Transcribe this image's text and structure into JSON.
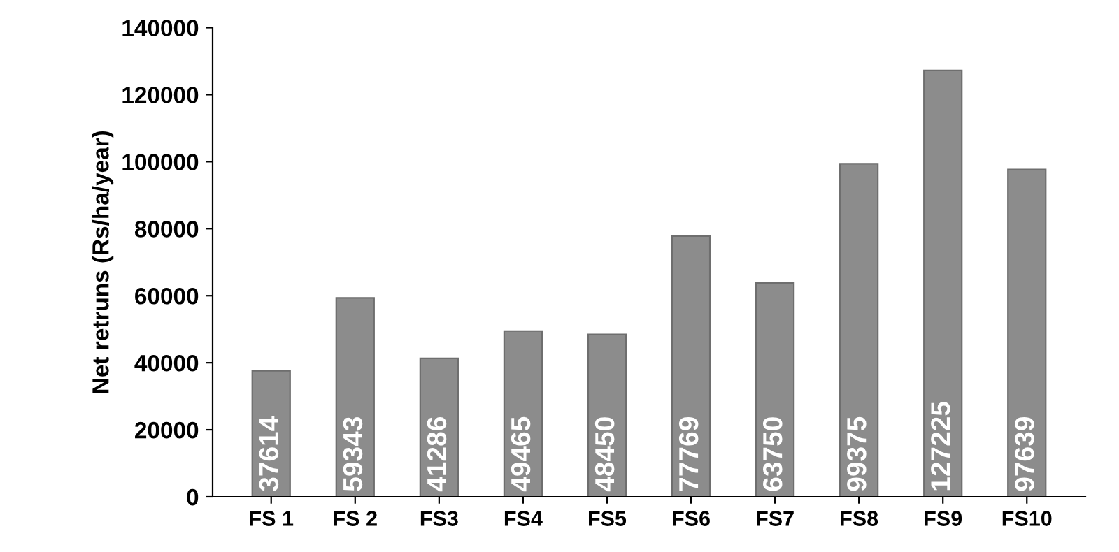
{
  "chart_data": {
    "type": "bar",
    "ylabel": "Net retruns (Rs/ha/year)",
    "categories": [
      "FS 1",
      "FS 2",
      "FS3",
      "FS4",
      "FS5",
      "FS6",
      "FS7",
      "FS8",
      "FS9",
      "FS10"
    ],
    "values": [
      37614,
      59343,
      41286,
      49465,
      48450,
      77769,
      63750,
      99375,
      127225,
      97639
    ],
    "color": "#8c8c8c",
    "data_labels": true,
    "ylim": [
      0,
      140000
    ],
    "yticks": [
      0,
      20000,
      40000,
      60000,
      80000,
      100000,
      120000,
      140000
    ],
    "grid": false
  }
}
